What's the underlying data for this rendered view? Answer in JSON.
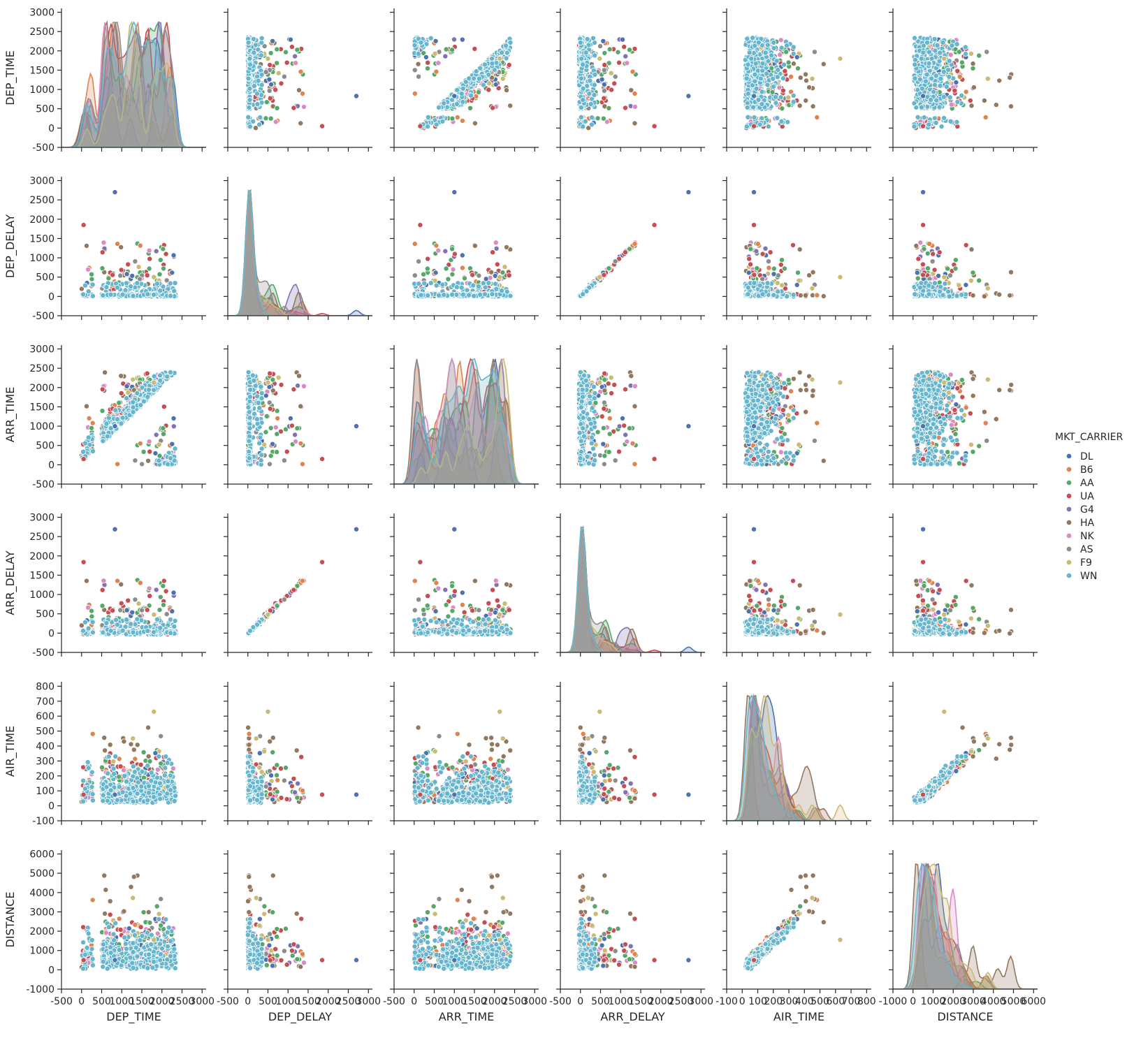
{
  "chart_data": {
    "type": "scatter",
    "kind": "pairplot",
    "variables": [
      "DEP_TIME",
      "DEP_DELAY",
      "ARR_TIME",
      "ARR_DELAY",
      "AIR_TIME",
      "DISTANCE"
    ],
    "axes": {
      "DEP_TIME": {
        "lim": [
          -500,
          3100
        ],
        "ticks": [
          -500,
          0,
          500,
          1000,
          1500,
          2000,
          2500,
          3000
        ]
      },
      "DEP_DELAY": {
        "lim": [
          -500,
          3100
        ],
        "ticks": [
          -500,
          0,
          500,
          1000,
          1500,
          2000,
          2500,
          3000
        ]
      },
      "ARR_TIME": {
        "lim": [
          -500,
          3100
        ],
        "ticks": [
          -500,
          0,
          500,
          1000,
          1500,
          2000,
          2500,
          3000
        ]
      },
      "ARR_DELAY": {
        "lim": [
          -500,
          3100
        ],
        "ticks": [
          -500,
          0,
          500,
          1000,
          1500,
          2000,
          2500,
          3000
        ]
      },
      "AIR_TIME": {
        "lim": [
          -100,
          830
        ],
        "ticks": [
          -100,
          0,
          100,
          200,
          300,
          400,
          500,
          600,
          700,
          800
        ]
      },
      "DISTANCE": {
        "lim": [
          -1000,
          6200
        ],
        "ticks": [
          -1000,
          0,
          1000,
          2000,
          3000,
          4000,
          5000,
          6000
        ]
      }
    },
    "hue": "MKT_CARRIER",
    "legend_title": "MKT_CARRIER",
    "legend_position": "right",
    "grid": false,
    "series": [
      {
        "name": "DL",
        "color": "#4c72b0"
      },
      {
        "name": "B6",
        "color": "#dd8452"
      },
      {
        "name": "AA",
        "color": "#55a868"
      },
      {
        "name": "UA",
        "color": "#c44e52"
      },
      {
        "name": "G4",
        "color": "#8172b3"
      },
      {
        "name": "HA",
        "color": "#937860"
      },
      {
        "name": "NK",
        "color": "#da8bc3"
      },
      {
        "name": "AS",
        "color": "#8c8c8c"
      },
      {
        "name": "F9",
        "color": "#ccb974"
      },
      {
        "name": "WN",
        "color": "#64b5cd"
      }
    ],
    "notable_points": [
      {
        "series": "DL",
        "DEP_TIME": 830,
        "DEP_DELAY": 2700,
        "ARR_TIME": 1000,
        "ARR_DELAY": 2690,
        "AIR_TIME": 75,
        "DISTANCE": 500
      },
      {
        "series": "UA",
        "DEP_TIME": 50,
        "DEP_DELAY": 1850,
        "ARR_TIME": 150,
        "ARR_DELAY": 1840,
        "AIR_TIME": 75,
        "DISTANCE": 500
      },
      {
        "series": "F9",
        "DEP_TIME": 1800,
        "DEP_DELAY": 500,
        "ARR_TIME": 2130,
        "ARR_DELAY": 480,
        "AIR_TIME": 630,
        "DISTANCE": 1550
      }
    ]
  }
}
